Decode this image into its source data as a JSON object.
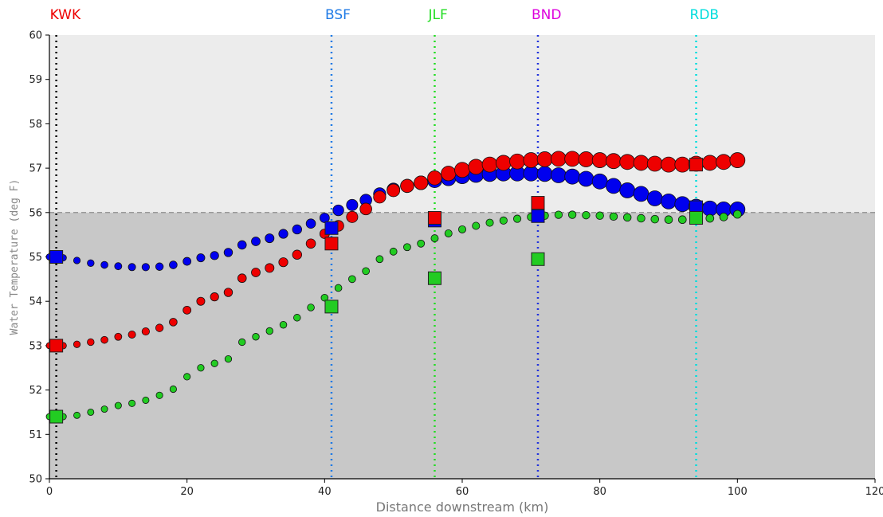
{
  "chart_data": {
    "type": "scatter",
    "xlabel": "Distance downstream (km)",
    "ylabel": "Water Temperature (deg F)",
    "xlim": [
      0,
      120
    ],
    "ylim": [
      50,
      60
    ],
    "x_ticks": [
      0,
      20,
      40,
      60,
      80,
      100,
      120
    ],
    "y_ticks": [
      50,
      51,
      52,
      53,
      54,
      55,
      56,
      57,
      58,
      59,
      60
    ],
    "reference_line": {
      "y": 56,
      "style": "dashed",
      "color": "#999999"
    },
    "band": {
      "below": 56,
      "below_color": "#c8c8c8",
      "above_color": "#ececec"
    },
    "sites": [
      {
        "label": "KWK",
        "x": 1,
        "color": "#ee0000",
        "line_color": "#000000"
      },
      {
        "label": "BSF",
        "x": 41,
        "color": "#1e7ae6",
        "line_color": "#1e7ae6"
      },
      {
        "label": "JLF",
        "x": 56,
        "color": "#22dd22",
        "line_color": "#22dd22"
      },
      {
        "label": "BND",
        "x": 71,
        "color": "#dd00dd",
        "line_color": "#2233dd"
      },
      {
        "label": "RDB",
        "x": 94,
        "color": "#00dddd",
        "line_color": "#00dddd"
      }
    ],
    "series": [
      {
        "color": "#0000ee",
        "x": [
          0,
          2,
          4,
          6,
          8,
          10,
          12,
          14,
          16,
          18,
          20,
          22,
          24,
          26,
          28,
          30,
          32,
          34,
          36,
          38,
          40,
          42,
          44,
          46,
          48,
          50,
          52,
          54,
          56,
          58,
          60,
          62,
          64,
          66,
          68,
          70,
          72,
          74,
          76,
          78,
          80,
          82,
          84,
          86,
          88,
          90,
          92,
          94,
          96,
          98,
          100
        ],
        "y": [
          55.0,
          54.98,
          54.92,
          54.86,
          54.82,
          54.79,
          54.77,
          54.77,
          54.78,
          54.82,
          54.9,
          54.98,
          55.03,
          55.1,
          55.27,
          55.35,
          55.42,
          55.52,
          55.62,
          55.75,
          55.88,
          56.05,
          56.17,
          56.28,
          56.42,
          56.52,
          56.6,
          56.67,
          56.72,
          56.77,
          56.82,
          56.85,
          56.87,
          56.88,
          56.88,
          56.88,
          56.87,
          56.84,
          56.81,
          56.76,
          56.7,
          56.6,
          56.5,
          56.42,
          56.32,
          56.25,
          56.19,
          56.13,
          56.09,
          56.07,
          56.07
        ]
      },
      {
        "color": "#ee0000",
        "x": [
          0,
          2,
          4,
          6,
          8,
          10,
          12,
          14,
          16,
          18,
          20,
          22,
          24,
          26,
          28,
          30,
          32,
          34,
          36,
          38,
          40,
          42,
          44,
          46,
          48,
          50,
          52,
          54,
          56,
          58,
          60,
          62,
          64,
          66,
          68,
          70,
          72,
          74,
          76,
          78,
          80,
          82,
          84,
          86,
          88,
          90,
          92,
          94,
          96,
          98,
          100
        ],
        "y": [
          53.0,
          53.0,
          53.03,
          53.08,
          53.13,
          53.2,
          53.25,
          53.32,
          53.4,
          53.53,
          53.8,
          54.0,
          54.1,
          54.2,
          54.52,
          54.65,
          54.75,
          54.88,
          55.05,
          55.3,
          55.52,
          55.7,
          55.9,
          56.08,
          56.35,
          56.5,
          56.6,
          56.67,
          56.78,
          56.88,
          56.96,
          57.03,
          57.08,
          57.12,
          57.15,
          57.18,
          57.2,
          57.21,
          57.21,
          57.2,
          57.18,
          57.16,
          57.14,
          57.12,
          57.1,
          57.08,
          57.08,
          57.1,
          57.12,
          57.14,
          57.18
        ]
      },
      {
        "color": "#22cc22",
        "x": [
          0,
          2,
          4,
          6,
          8,
          10,
          12,
          14,
          16,
          18,
          20,
          22,
          24,
          26,
          28,
          30,
          32,
          34,
          36,
          38,
          40,
          42,
          44,
          46,
          48,
          50,
          52,
          54,
          56,
          58,
          60,
          62,
          64,
          66,
          68,
          70,
          72,
          74,
          76,
          78,
          80,
          82,
          84,
          86,
          88,
          90,
          92,
          94,
          96,
          98,
          100
        ],
        "y": [
          51.4,
          51.4,
          51.43,
          51.5,
          51.57,
          51.65,
          51.7,
          51.77,
          51.88,
          52.02,
          52.3,
          52.5,
          52.6,
          52.7,
          53.08,
          53.2,
          53.33,
          53.47,
          53.63,
          53.86,
          54.08,
          54.3,
          54.5,
          54.68,
          54.95,
          55.12,
          55.22,
          55.3,
          55.42,
          55.53,
          55.62,
          55.7,
          55.77,
          55.82,
          55.86,
          55.9,
          55.93,
          55.95,
          55.95,
          55.94,
          55.93,
          55.91,
          55.89,
          55.87,
          55.85,
          55.84,
          55.84,
          55.85,
          55.87,
          55.9,
          55.96
        ]
      }
    ],
    "observations": [
      {
        "color": "#0000ee",
        "points": [
          [
            1,
            55.0
          ],
          [
            41,
            55.65
          ],
          [
            56,
            55.82
          ],
          [
            71,
            55.92
          ],
          [
            94,
            56.12
          ]
        ]
      },
      {
        "color": "#ee0000",
        "points": [
          [
            1,
            53.0
          ],
          [
            41,
            55.3
          ],
          [
            56,
            55.88
          ],
          [
            71,
            56.22
          ],
          [
            94,
            57.08
          ]
        ]
      },
      {
        "color": "#22cc22",
        "points": [
          [
            1,
            51.4
          ],
          [
            41,
            53.88
          ],
          [
            56,
            54.52
          ],
          [
            71,
            54.95
          ],
          [
            94,
            55.88
          ]
        ]
      }
    ]
  }
}
